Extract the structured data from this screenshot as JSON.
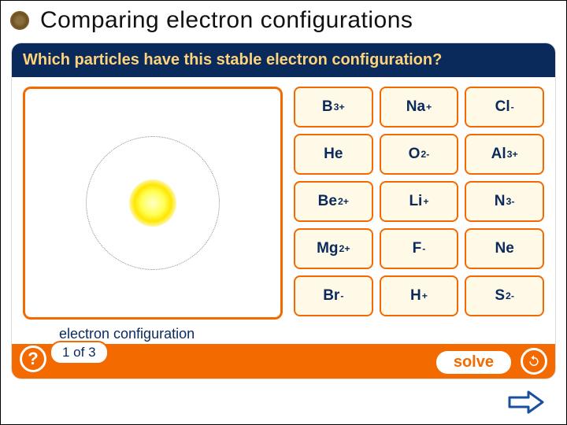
{
  "header": {
    "title": "Comparing electron configurations"
  },
  "question_bar": {
    "text": "Which particles have this stable electron configuration?"
  },
  "diagram": {
    "orbit_color": "#888888",
    "nucleus_color": "#ffe600"
  },
  "answers": {
    "grid_rows": 5,
    "grid_cols": 3,
    "cells": [
      {
        "base": "B",
        "sup": "3+"
      },
      {
        "base": "Na",
        "sup": "+"
      },
      {
        "base": "Cl",
        "sup": "-"
      },
      {
        "base": "He",
        "sup": ""
      },
      {
        "base": "O",
        "sup": "2-"
      },
      {
        "base": "Al",
        "sup": "3+"
      },
      {
        "base": "Be",
        "sup": "2+"
      },
      {
        "base": "Li",
        "sup": "+"
      },
      {
        "base": "N",
        "sup": "3-"
      },
      {
        "base": "Mg",
        "sup": "2+"
      },
      {
        "base": "F",
        "sup": "-"
      },
      {
        "base": "Ne",
        "sup": ""
      },
      {
        "base": "Br",
        "sup": "-"
      },
      {
        "base": "H",
        "sup": "+"
      },
      {
        "base": "S",
        "sup": "2-"
      }
    ],
    "cell_bg": "#fff9e8",
    "cell_border": "#f26a00",
    "cell_text_color": "#0a2a5c"
  },
  "caption": {
    "line1": "electron configuration",
    "line2": "1 of 3"
  },
  "controls": {
    "help_label": "?",
    "solve_label": "solve",
    "counter_label": "1 of 3"
  },
  "colors": {
    "accent": "#f26a00",
    "header_bg": "#0a2a5c",
    "header_text": "#ffd37a"
  }
}
